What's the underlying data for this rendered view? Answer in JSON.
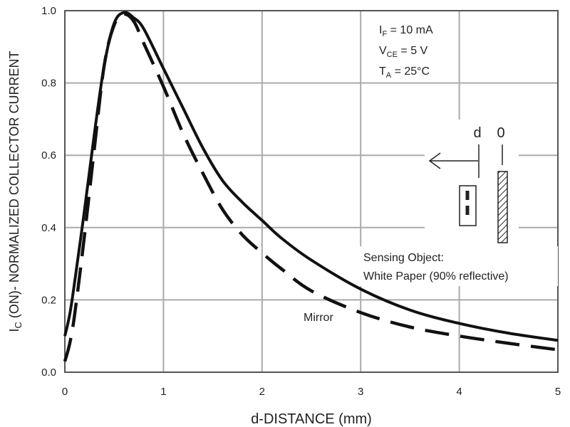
{
  "chart_data": {
    "type": "line",
    "xlabel": "d-DISTANCE (mm)",
    "ylabel": {
      "main": "I",
      "sub": "C",
      "rest": " (ON)- NORMALIZED COLLECTOR CURRENT"
    },
    "xlim": [
      0,
      5
    ],
    "ylim": [
      0,
      1.0
    ],
    "x_ticks": [
      "0",
      "1",
      "2",
      "3",
      "4",
      "5"
    ],
    "y_ticks": [
      "0.0",
      "0.2",
      "0.4",
      "0.6",
      "0.8",
      "1.0"
    ],
    "grid": true,
    "series": [
      {
        "name": "White Paper (90% reflective)",
        "style": "solid",
        "points": [
          [
            0,
            0.1
          ],
          [
            0.05,
            0.16
          ],
          [
            0.1,
            0.25
          ],
          [
            0.2,
            0.45
          ],
          [
            0.3,
            0.66
          ],
          [
            0.4,
            0.85
          ],
          [
            0.5,
            0.965
          ],
          [
            0.6,
            0.995
          ],
          [
            0.7,
            0.98
          ],
          [
            0.8,
            0.95
          ],
          [
            1.0,
            0.84
          ],
          [
            1.2,
            0.73
          ],
          [
            1.4,
            0.62
          ],
          [
            1.6,
            0.53
          ],
          [
            1.8,
            0.47
          ],
          [
            2.0,
            0.42
          ],
          [
            2.2,
            0.37
          ],
          [
            2.5,
            0.31
          ],
          [
            3.0,
            0.23
          ],
          [
            3.5,
            0.172
          ],
          [
            4.0,
            0.135
          ],
          [
            4.5,
            0.108
          ],
          [
            5.0,
            0.088
          ]
        ]
      },
      {
        "name": "Mirror",
        "style": "dashed",
        "points": [
          [
            0,
            0.03
          ],
          [
            0.05,
            0.08
          ],
          [
            0.1,
            0.16
          ],
          [
            0.2,
            0.38
          ],
          [
            0.3,
            0.62
          ],
          [
            0.4,
            0.85
          ],
          [
            0.5,
            0.96
          ],
          [
            0.6,
            0.99
          ],
          [
            0.7,
            0.97
          ],
          [
            0.8,
            0.91
          ],
          [
            1.0,
            0.79
          ],
          [
            1.2,
            0.66
          ],
          [
            1.4,
            0.55
          ],
          [
            1.6,
            0.45
          ],
          [
            1.8,
            0.38
          ],
          [
            2.0,
            0.33
          ],
          [
            2.2,
            0.285
          ],
          [
            2.5,
            0.225
          ],
          [
            3.0,
            0.165
          ],
          [
            3.5,
            0.125
          ],
          [
            4.0,
            0.1
          ],
          [
            4.5,
            0.08
          ],
          [
            5.0,
            0.062
          ]
        ]
      }
    ],
    "conditions": [
      {
        "main": "I",
        "sub": "F",
        "rest": " = 10 mA"
      },
      {
        "main": "V",
        "sub": "CE",
        "rest": " = 5 V"
      },
      {
        "main": "T",
        "sub": "A",
        "rest": " = 25°C"
      }
    ],
    "annotations": {
      "sensing_object_title": "Sensing Object:",
      "sensing_object_detail": "White Paper (90% reflective)",
      "mirror_label": "Mirror",
      "diagram_d": "d",
      "diagram_zero": "0"
    }
  }
}
